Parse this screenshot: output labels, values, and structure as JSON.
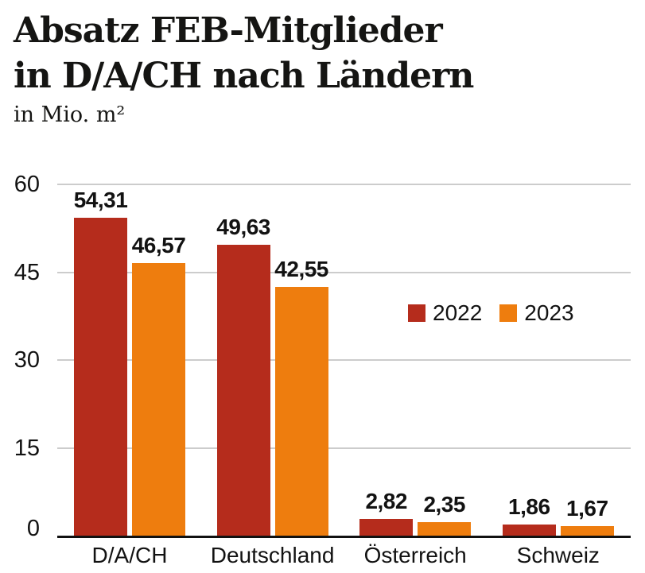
{
  "header": {
    "title_line1": "Absatz FEB-Mitglieder",
    "title_line2": "in D/A/CH nach Ländern",
    "subtitle": "in Mio. m²"
  },
  "colors": {
    "series_2022": "#b52c1c",
    "series_2023": "#ee7d0e",
    "gridline": "#cccccc",
    "axis_line": "#111111",
    "text": "#121212"
  },
  "chart_data": {
    "type": "bar",
    "categories": [
      "D/A/CH",
      "Deutschland",
      "Österreich",
      "Schweiz"
    ],
    "series": [
      {
        "name": "2022",
        "color": "#b52c1c",
        "values": [
          54.31,
          49.63,
          2.82,
          1.86
        ],
        "labels": [
          "54,31",
          "49,63",
          "2,82",
          "1,86"
        ]
      },
      {
        "name": "2023",
        "color": "#ee7d0e",
        "values": [
          46.57,
          42.55,
          2.35,
          1.67
        ],
        "labels": [
          "46,57",
          "42,55",
          "2,35",
          "1,67"
        ]
      }
    ],
    "title": "Absatz FEB-Mitglieder in D/A/CH nach Ländern",
    "xlabel": "",
    "ylabel": "in Mio. m²",
    "ylim": [
      0,
      60
    ],
    "yticks": [
      0,
      15,
      30,
      45,
      60
    ],
    "grid": true,
    "legend_position": "center-right"
  }
}
